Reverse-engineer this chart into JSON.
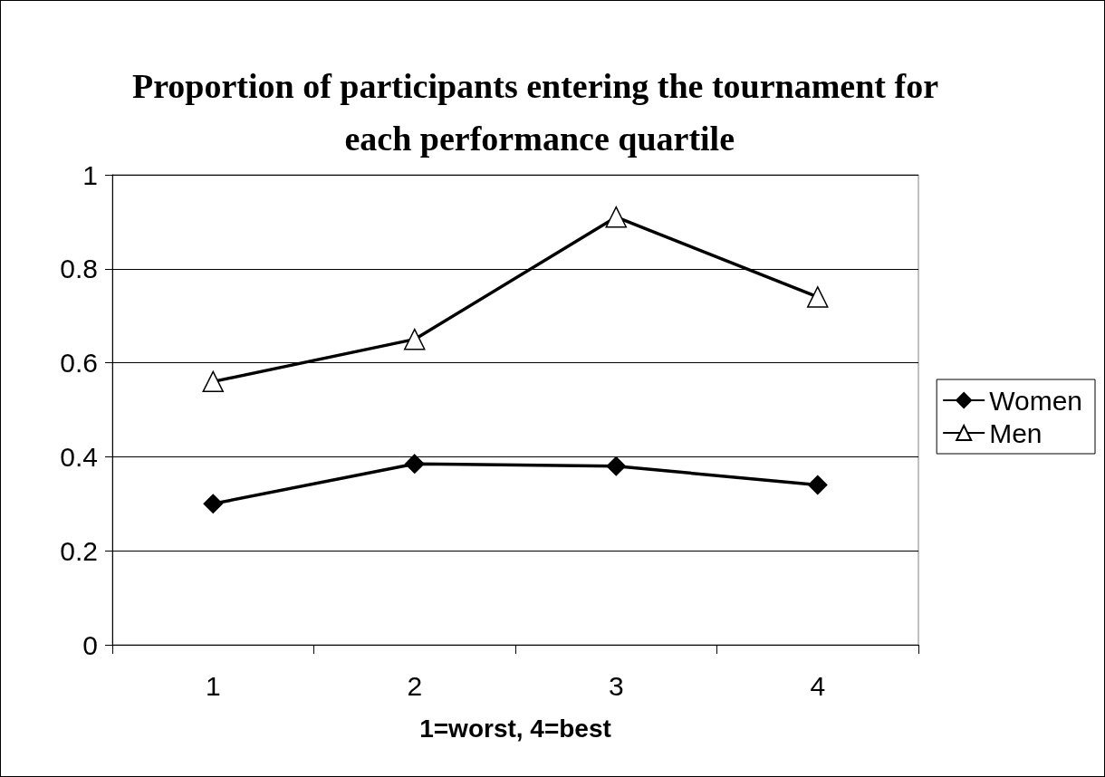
{
  "chart_data": {
    "type": "line",
    "title": "Proportion of participants entering the tournament for each performance quartile",
    "xlabel": "1=worst, 4=best",
    "categories": [
      "1",
      "2",
      "3",
      "4"
    ],
    "series": [
      {
        "name": "Women",
        "color": "#000000",
        "marker": "diamond",
        "values": [
          0.3,
          0.385,
          0.38,
          0.34
        ]
      },
      {
        "name": "Men",
        "color": "#000000",
        "marker": "triangle",
        "values": [
          0.56,
          0.65,
          0.91,
          0.74
        ]
      }
    ],
    "ylim": [
      0,
      1
    ],
    "yticks": [
      0,
      0.2,
      0.4,
      0.6,
      0.8,
      1
    ],
    "grid": "y",
    "legend": "right",
    "line_style": "solid"
  }
}
